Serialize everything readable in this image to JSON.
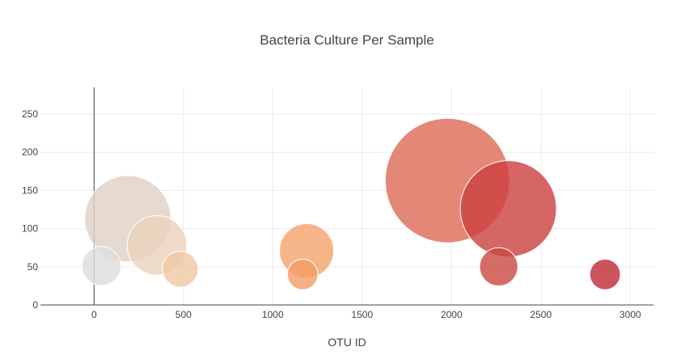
{
  "chart_data": {
    "type": "scatter",
    "title": "Bacteria Culture Per Sample",
    "xlabel": "OTU ID",
    "ylabel": "",
    "xlim": [
      -300,
      3130
    ],
    "ylim": [
      0,
      285
    ],
    "x_ticks": [
      0,
      500,
      1000,
      1500,
      2000,
      2500,
      3000
    ],
    "y_ticks": [
      0,
      50,
      100,
      150,
      200,
      250
    ],
    "grid": true,
    "legend": "none",
    "points": [
      {
        "x": 1977,
        "y": 163,
        "size": 163,
        "color": "#dc6a55"
      },
      {
        "x": 2318,
        "y": 126,
        "size": 126,
        "color": "#cc4040"
      },
      {
        "x": 189,
        "y": 113,
        "size": 113,
        "color": "#e0d0c4"
      },
      {
        "x": 352,
        "y": 78,
        "size": 78,
        "color": "#ead2bc"
      },
      {
        "x": 1189,
        "y": 71,
        "size": 71,
        "color": "#f4a26c"
      },
      {
        "x": 41,
        "y": 51,
        "size": 51,
        "color": "#dcdcdc"
      },
      {
        "x": 2264,
        "y": 50,
        "size": 50,
        "color": "#c84840"
      },
      {
        "x": 482,
        "y": 47,
        "size": 47,
        "color": "#f0c8a4"
      },
      {
        "x": 1167,
        "y": 40,
        "size": 40,
        "color": "#f49c64"
      },
      {
        "x": 2859,
        "y": 40,
        "size": 40,
        "color": "#be2836"
      }
    ]
  }
}
